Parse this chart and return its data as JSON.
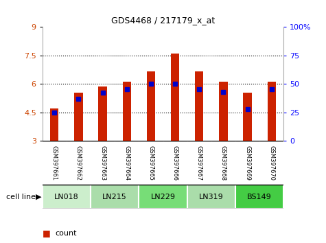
{
  "title": "GDS4468 / 217179_x_at",
  "samples": [
    "GSM397661",
    "GSM397662",
    "GSM397663",
    "GSM397664",
    "GSM397665",
    "GSM397666",
    "GSM397667",
    "GSM397668",
    "GSM397669",
    "GSM397670"
  ],
  "count_values": [
    4.7,
    5.55,
    5.85,
    6.1,
    6.65,
    7.6,
    6.65,
    6.1,
    5.55,
    6.1
  ],
  "percentile_values": [
    25,
    37,
    42,
    45,
    50,
    50,
    45,
    43,
    28,
    45
  ],
  "cell_lines": [
    {
      "name": "LN018",
      "start": 0,
      "end": 2,
      "color": "#cceecc"
    },
    {
      "name": "LN215",
      "start": 2,
      "end": 4,
      "color": "#aaddaa"
    },
    {
      "name": "LN229",
      "start": 4,
      "end": 6,
      "color": "#77dd77"
    },
    {
      "name": "LN319",
      "start": 6,
      "end": 8,
      "color": "#aaddaa"
    },
    {
      "name": "BS149",
      "start": 8,
      "end": 10,
      "color": "#44cc44"
    }
  ],
  "ylim_left": [
    3,
    9
  ],
  "ylim_right": [
    0,
    100
  ],
  "yticks_left": [
    3,
    4.5,
    6,
    7.5,
    9
  ],
  "yticks_right": [
    0,
    25,
    50,
    75,
    100
  ],
  "bar_color": "#cc2200",
  "percentile_color": "#0000cc",
  "background_color": "#ffffff",
  "bar_bottom": 3.0,
  "bar_width": 0.35,
  "percentile_marker_size": 5,
  "grid_lines": [
    4.5,
    6.0,
    7.5
  ],
  "sample_bg_color": "#cccccc",
  "sample_border_color": "#999999"
}
